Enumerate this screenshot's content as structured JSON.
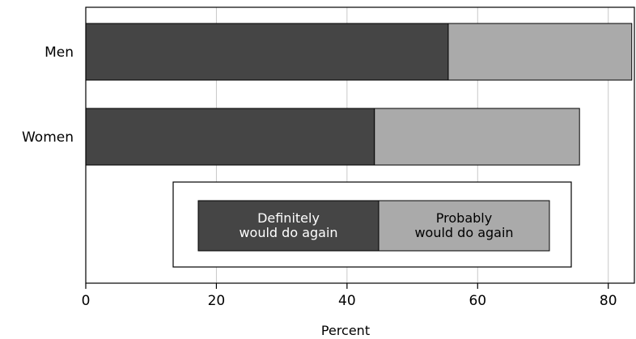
{
  "chart_data": {
    "type": "bar",
    "orientation": "horizontal",
    "stacked": true,
    "categories": [
      "Men",
      "Women"
    ],
    "series": [
      {
        "name": "Definitely would do again",
        "values": [
          55.5,
          44.2
        ],
        "color": "#454545"
      },
      {
        "name": "Probably would do again",
        "values": [
          28.1,
          31.4
        ],
        "color": "#aaaaaa"
      }
    ],
    "legend_lines": [
      [
        "Definitely",
        "would do again"
      ],
      [
        "Probably",
        "would do again"
      ]
    ],
    "xlabel": "Percent",
    "xlim": [
      0,
      84
    ],
    "xticks": [
      0,
      20,
      40,
      60,
      80
    ],
    "grid": "vertical",
    "legend": "inside-bottom-center"
  }
}
